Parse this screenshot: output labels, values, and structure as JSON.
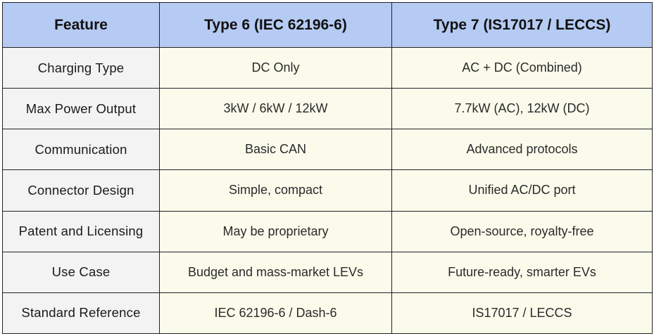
{
  "table": {
    "headers": [
      "Feature",
      "Type 6 (IEC 62196-6)",
      "Type 7 (IS17017 / LECCS)"
    ],
    "rows": [
      {
        "feature": "Charging Type",
        "type6": "DC Only",
        "type7": "AC + DC (Combined)"
      },
      {
        "feature": "Max Power Output",
        "type6": "3kW / 6kW / 12kW",
        "type7": "7.7kW (AC), 12kW (DC)"
      },
      {
        "feature": "Communication",
        "type6": "Basic CAN",
        "type7": "Advanced protocols"
      },
      {
        "feature": "Connector Design",
        "type6": "Simple, compact",
        "type7": "Unified AC/DC port"
      },
      {
        "feature": "Patent and Licensing",
        "type6": "May be proprietary",
        "type7": "Open-source, royalty-free"
      },
      {
        "feature": "Use Case",
        "type6": "Budget and mass-market LEVs",
        "type7": "Future-ready, smarter EVs"
      },
      {
        "feature": "Standard Reference",
        "type6": "IEC 62196-6 / Dash-6",
        "type7": "IS17017 / LECCS"
      }
    ]
  },
  "colors": {
    "header_bg": "#b6cbf3",
    "feature_col_bg": "#f3f3f3",
    "value_bg": "#fbfbec",
    "border": "#222222"
  }
}
